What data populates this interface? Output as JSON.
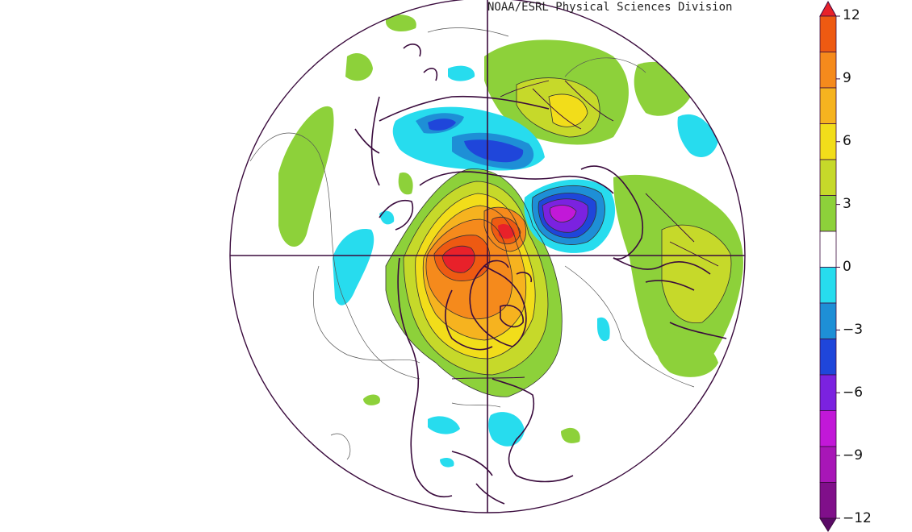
{
  "credit": "NOAA/ESRL Physical Sciences Division",
  "colorbar": {
    "ticks": [
      "12",
      "9",
      "6",
      "3",
      "0",
      "−3",
      "−6",
      "−9",
      "−12"
    ],
    "bands": [
      {
        "range": "above 12",
        "color": "#e8212a"
      },
      {
        "range": "10.5 to 12",
        "color": "#ee5a12"
      },
      {
        "range": "9 to 10.5",
        "color": "#f58a1c"
      },
      {
        "range": "7.5 to 9",
        "color": "#f6b31f"
      },
      {
        "range": "6 to 7.5",
        "color": "#f2dd1a"
      },
      {
        "range": "4.5 to 6",
        "color": "#c6d92a"
      },
      {
        "range": "1.5 to 4.5",
        "color": "#8dd13a"
      },
      {
        "range": "-1.5 to 1.5",
        "color": "#ffffff"
      },
      {
        "range": "-3 to -1.5",
        "color": "#27dcee"
      },
      {
        "range": "-4.5 to -3",
        "color": "#1e8fd6"
      },
      {
        "range": "-6 to -4.5",
        "color": "#1f46da"
      },
      {
        "range": "-7.5 to -6",
        "color": "#7b22e0"
      },
      {
        "range": "-9 to -7.5",
        "color": "#c218d8"
      },
      {
        "range": "-10.5 to -9",
        "color": "#a816b7"
      },
      {
        "range": "-12 to -10.5",
        "color": "#800f8a"
      },
      {
        "range": "below -12",
        "color": "#5a0a66"
      }
    ]
  },
  "colors": {
    "coast": "#3a0b3d",
    "grid": "#3a0b3d",
    "contour": "#555555"
  }
}
